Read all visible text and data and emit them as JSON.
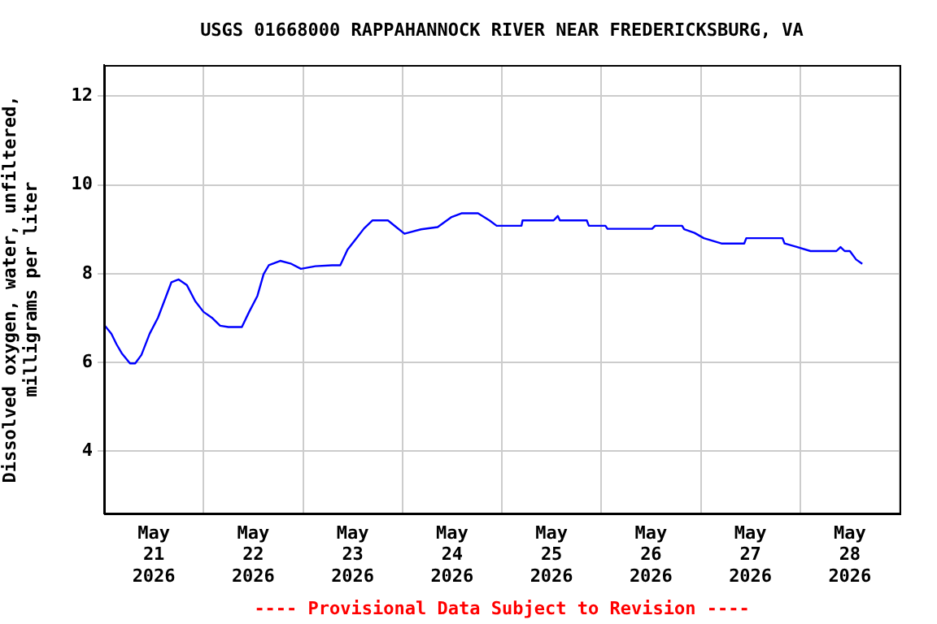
{
  "chart_data": {
    "type": "line",
    "title": "USGS 01668000 RAPPAHANNOCK RIVER NEAR FREDERICKSBURG, VA",
    "ylabel": "Dissolved oxygen, water, unfiltered,\nmilligrams per liter",
    "annotations": [
      "---- Provisional Data Subject to Revision ----"
    ],
    "x": [
      "2026-05-21T00:00",
      "2026-05-21T01:45",
      "2026-05-21T03:00",
      "2026-05-21T04:15",
      "2026-05-21T06:15",
      "2026-05-21T07:30",
      "2026-05-21T09:00",
      "2026-05-21T11:00",
      "2026-05-21T13:00",
      "2026-05-21T14:45",
      "2026-05-21T16:15",
      "2026-05-21T18:00",
      "2026-05-21T20:00",
      "2026-05-21T22:00",
      "2026-05-22T00:00",
      "2026-05-22T02:00",
      "2026-05-22T04:00",
      "2026-05-22T06:00",
      "2026-05-22T09:15",
      "2026-05-22T11:00",
      "2026-05-22T13:00",
      "2026-05-22T14:30",
      "2026-05-22T15:45",
      "2026-05-22T18:30",
      "2026-05-22T21:00",
      "2026-05-22T23:30",
      "2026-05-23T03:00",
      "2026-05-23T07:00",
      "2026-05-23T09:00",
      "2026-05-23T10:45",
      "2026-05-23T12:45",
      "2026-05-23T14:45",
      "2026-05-23T16:45",
      "2026-05-23T20:30",
      "2026-05-23T22:30",
      "2026-05-24T00:30",
      "2026-05-24T04:30",
      "2026-05-24T08:30",
      "2026-05-24T11:45",
      "2026-05-24T14:15",
      "2026-05-24T18:15",
      "2026-05-24T21:00",
      "2026-05-24T22:45",
      "2026-05-25T04:45",
      "2026-05-25T05:00",
      "2026-05-25T12:30",
      "2026-05-25T13:30",
      "2026-05-25T14:00",
      "2026-05-25T20:30",
      "2026-05-25T21:00",
      "2026-05-26T01:00",
      "2026-05-26T01:30",
      "2026-05-26T12:15",
      "2026-05-26T13:00",
      "2026-05-26T19:30",
      "2026-05-26T20:00",
      "2026-05-26T22:30",
      "2026-05-27T00:45",
      "2026-05-27T05:00",
      "2026-05-27T10:30",
      "2026-05-27T11:00",
      "2026-05-27T19:45",
      "2026-05-27T20:15",
      "2026-05-27T23:00",
      "2026-05-28T02:30",
      "2026-05-28T08:45",
      "2026-05-28T09:45",
      "2026-05-28T10:45",
      "2026-05-28T12:00",
      "2026-05-28T13:30",
      "2026-05-28T15:00"
    ],
    "series": [
      {
        "color": "#0000ff",
        "values": [
          6.85,
          6.65,
          6.41,
          6.21,
          5.98,
          5.98,
          6.17,
          6.65,
          7.01,
          7.44,
          7.81,
          7.87,
          7.74,
          7.38,
          7.14,
          7.01,
          6.83,
          6.8,
          6.8,
          7.14,
          7.5,
          7.99,
          8.19,
          8.29,
          8.23,
          8.11,
          8.17,
          8.19,
          8.19,
          8.54,
          8.78,
          9.02,
          9.2,
          9.2,
          9.05,
          8.9,
          9.0,
          9.05,
          9.27,
          9.36,
          9.36,
          9.2,
          9.08,
          9.08,
          9.2,
          9.2,
          9.3,
          9.2,
          9.2,
          9.08,
          9.08,
          9.01,
          9.01,
          9.08,
          9.08,
          9.0,
          8.92,
          8.8,
          8.68,
          8.68,
          8.8,
          8.8,
          8.68,
          8.61,
          8.51,
          8.51,
          8.6,
          8.51,
          8.51,
          8.32,
          8.22
        ]
      }
    ],
    "xlim": [
      "2026-05-21",
      "2026-05-29"
    ],
    "xticks": [
      {
        "value": "2026-05-21",
        "label": null
      },
      {
        "value": "2026-05-22",
        "label": null
      },
      {
        "value": "2026-05-23",
        "label": null
      },
      {
        "value": "2026-05-24",
        "label": null
      },
      {
        "value": "2026-05-25",
        "label": null
      },
      {
        "value": "2026-05-26",
        "label": null
      },
      {
        "value": "2026-05-27",
        "label": null
      },
      {
        "value": "2026-05-28",
        "label": null
      },
      {
        "value": "2026-05-29",
        "label": null
      },
      {
        "value": "2026-05-21T12:00",
        "label": "May 21 2026"
      },
      {
        "value": "2026-05-22T12:00",
        "label": "May 22 2026"
      },
      {
        "value": "2026-05-23T12:00",
        "label": "May 23 2026"
      },
      {
        "value": "2026-05-24T12:00",
        "label": "May 24 2026"
      },
      {
        "value": "2026-05-25T12:00",
        "label": "May 25 2026"
      },
      {
        "value": "2026-05-26T12:00",
        "label": "May 26 2026"
      },
      {
        "value": "2026-05-27T12:00",
        "label": "May 27 2026"
      },
      {
        "value": "2026-05-28T12:00",
        "label": "May 28 2026"
      }
    ],
    "ylim": [
      2.6,
      12.7
    ],
    "yticks": [
      4,
      6,
      8,
      10,
      12
    ],
    "grid": true,
    "legend": false,
    "marker": "none",
    "line_style": "solid"
  }
}
